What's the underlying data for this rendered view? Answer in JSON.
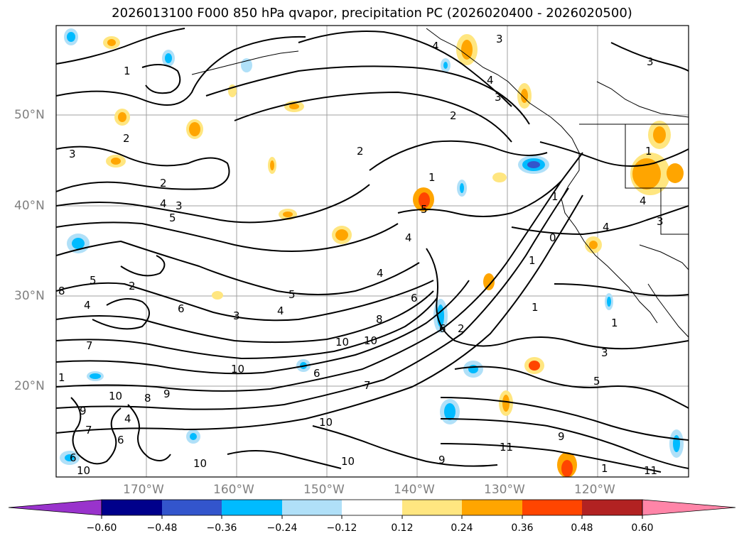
{
  "title": "2026013100 F000 850 hPa qvapor, precipitation PC (2026020400 - 2026020500)",
  "lat_labels": [
    "50°N",
    "40°N",
    "30°N",
    "20°N"
  ],
  "lon_labels": [
    "170°W",
    "160°W",
    "150°W",
    "140°W",
    "130°W",
    "120°W"
  ],
  "colorbar": {
    "ticks": [
      "−0.60",
      "−0.48",
      "−0.36",
      "−0.24",
      "−0.12",
      "0.12",
      "0.24",
      "0.36",
      "0.48",
      "0.60"
    ],
    "colors": [
      "#9933cc",
      "#00008b",
      "#3355cc",
      "#00bbff",
      "#b0e0f8",
      "#ffffff",
      "#ffe680",
      "#ffa500",
      "#ff4500",
      "#b22222",
      "#ff85a8",
      "#ff85a8"
    ]
  },
  "contour_labels": [
    "1",
    "2",
    "3",
    "4",
    "5",
    "6",
    "8",
    "10",
    "11",
    "0"
  ]
}
